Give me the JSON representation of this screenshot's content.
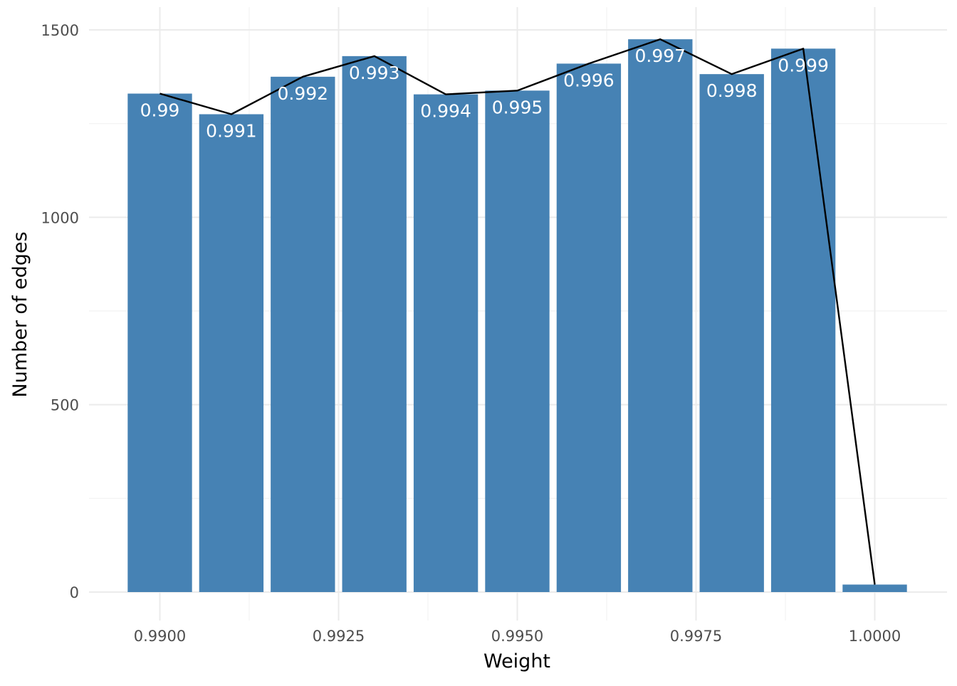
{
  "chart_data": {
    "type": "bar",
    "xlabel": "Weight",
    "ylabel": "Number of edges",
    "xlim": [
      0.9895,
      1.0005
    ],
    "ylim": [
      -60,
      1500
    ],
    "x_ticks": [
      0.99,
      0.9925,
      0.995,
      0.9975,
      1.0
    ],
    "x_tick_labels": [
      "0.9900",
      "0.9925",
      "0.9950",
      "0.9975",
      "1.0000"
    ],
    "y_ticks": [
      0,
      500,
      1000,
      1500
    ],
    "y_tick_labels": [
      "0",
      "500",
      "1000",
      "1500"
    ],
    "grid": true,
    "bar_color": "#4682B4",
    "line_color": "#000000",
    "bars": [
      {
        "x": 0.99,
        "value": 1330,
        "label": "0.99"
      },
      {
        "x": 0.991,
        "value": 1275,
        "label": "0.991"
      },
      {
        "x": 0.992,
        "value": 1375,
        "label": "0.992"
      },
      {
        "x": 0.993,
        "value": 1430,
        "label": "0.993"
      },
      {
        "x": 0.994,
        "value": 1328,
        "label": "0.994"
      },
      {
        "x": 0.995,
        "value": 1338,
        "label": "0.995"
      },
      {
        "x": 0.996,
        "value": 1410,
        "label": "0.996"
      },
      {
        "x": 0.997,
        "value": 1475,
        "label": "0.997"
      },
      {
        "x": 0.998,
        "value": 1382,
        "label": "0.998"
      },
      {
        "x": 0.999,
        "value": 1450,
        "label": "0.999"
      },
      {
        "x": 1.0,
        "value": 20,
        "label": ""
      }
    ]
  }
}
